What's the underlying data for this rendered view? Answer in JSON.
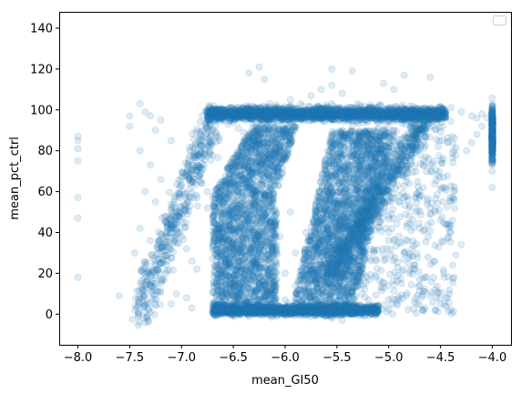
{
  "chart_data": {
    "type": "scatter",
    "title": "",
    "xlabel": "mean_GI50",
    "ylabel": "mean_pct_ctrl",
    "xlim": [
      -8.18,
      -3.82
    ],
    "ylim": [
      -15,
      148
    ],
    "xticks": [
      -8.0,
      -7.5,
      -7.0,
      -6.5,
      -6.0,
      -5.5,
      -5.0,
      -4.5,
      -4.0
    ],
    "xtick_labels": [
      "−8.0",
      "−7.5",
      "−7.0",
      "−6.5",
      "−6.0",
      "−5.5",
      "−5.0",
      "−4.5",
      "−4.0"
    ],
    "yticks": [
      0,
      20,
      40,
      60,
      80,
      100,
      120,
      140
    ],
    "ytick_labels": [
      "0",
      "20",
      "40",
      "60",
      "80",
      "100",
      "120",
      "140"
    ],
    "grid": false,
    "legend": "top-right (empty)",
    "marker_color": "#1f77b4",
    "marker_alpha": 0.15,
    "series": [
      {
        "x": [
          -8.0,
          -8.0,
          -8.0,
          -8.0,
          -8.0,
          -8.0,
          -8.0,
          -7.6,
          -7.5,
          -7.5,
          -7.4,
          -7.35,
          -7.3,
          -7.2,
          -7.25,
          -7.1,
          -7.4,
          -7.3,
          -7.2,
          -7.35,
          -7.25,
          -7.15,
          -7.4,
          -7.3,
          -7.45,
          -7.35,
          -7.15,
          -7.3,
          -7.05,
          -6.95,
          -7.1,
          -6.9,
          -7.15,
          -7.0,
          -6.95,
          -6.9,
          -6.85,
          -6.85,
          -6.8,
          -6.75,
          -6.75,
          -6.7,
          -6.65,
          -6.6,
          -6.6,
          -6.55,
          -6.5,
          -6.45,
          -6.4,
          -6.35,
          -6.3,
          -6.25,
          -6.35,
          -6.4,
          -6.5,
          -6.55,
          -6.6,
          -6.45,
          -6.4,
          -6.3,
          -6.5,
          -6.6,
          -6.7,
          -6.2,
          -6.3,
          -6.25,
          -6.15,
          -6.05,
          -6.0,
          -5.95,
          -5.9,
          -5.85,
          -5.8,
          -5.75,
          -5.7,
          -5.65,
          -5.6,
          -5.55,
          -5.5,
          -5.45,
          -5.4,
          -5.35,
          -5.3,
          -5.25,
          -5.2,
          -5.15,
          -5.1,
          -5.0,
          -4.9,
          -4.8,
          -4.7,
          -4.6,
          -4.5,
          -4.45,
          -5.35,
          -5.25,
          -5.15,
          -5.05,
          -4.95,
          -5.45,
          -5.3,
          -5.2,
          -5.1,
          -5.0,
          -4.9,
          -5.4,
          -5.3,
          -5.2,
          -5.1,
          -5.6,
          -5.5,
          -5.4,
          -5.7,
          -5.6,
          -5.5,
          -5.8,
          -5.7,
          -5.6,
          -5.9,
          -5.8,
          -5.7,
          -6.0,
          -5.9,
          -5.8,
          -6.1,
          -6.0,
          -5.9,
          -5.75,
          -5.65,
          -5.55,
          -5.85,
          -5.75,
          -5.45,
          -6.05,
          -6.15,
          -5.95,
          -6.0,
          -5.9,
          -5.8,
          -5.7,
          -5.6,
          -5.5,
          -5.4,
          -5.3,
          -5.2,
          -4.95,
          -4.85,
          -4.75,
          -4.65,
          -4.55,
          -4.45,
          -4.4,
          -4.3,
          -4.2,
          -4.15,
          -4.1,
          -4.9,
          -4.8,
          -4.7,
          -4.6,
          -4.5,
          -4.4,
          -4.3,
          -4.85,
          -4.75,
          -4.65,
          -4.55,
          -4.45,
          -4.8,
          -4.7,
          -4.6,
          -4.5,
          -4.75,
          -4.65,
          -4.55,
          -4.9,
          -4.8,
          -4.7,
          -5.0,
          -4.9,
          -4.8,
          -5.1,
          -5.0,
          -4.95,
          -4.85,
          -4.75,
          -4.0,
          -4.0,
          -4.0,
          -4.0,
          -4.0,
          -4.0,
          -4.0,
          -4.0,
          -4.0,
          -4.0,
          -4.0,
          -4.0,
          -4.0,
          -4.05,
          -4.1,
          -4.15,
          -4.2,
          -4.25,
          -6.2,
          -6.35,
          -6.25,
          -5.55,
          -5.35,
          -4.85,
          -4.6,
          -5.05,
          -4.95,
          -5.55,
          -5.45,
          -5.65,
          -5.75,
          -5.95,
          -6.85,
          -6.95,
          -7.05,
          -6.5,
          -6.6,
          -6.7,
          -6.75,
          -6.8,
          -6.65,
          -6.55,
          -6.45,
          -6.4,
          -6.35,
          -6.3,
          -6.25,
          -6.2
        ],
        "y": [
          87,
          85,
          81,
          75,
          57,
          47,
          18,
          9,
          97,
          92,
          103,
          99,
          97,
          95,
          90,
          85,
          80,
          73,
          66,
          60,
          55,
          48,
          42,
          36,
          30,
          24,
          20,
          15,
          10,
          8,
          5,
          3,
          45,
          38,
          32,
          26,
          22,
          70,
          64,
          60,
          52,
          47,
          42,
          55,
          37,
          32,
          28,
          23,
          18,
          13,
          9,
          6,
          3,
          1,
          0,
          2,
          5,
          8,
          12,
          16,
          25,
          35,
          45,
          94,
          97,
          100,
          103,
          100,
          98,
          99,
          101,
          103,
          100,
          98,
          97,
          99,
          101,
          103,
          100,
          98,
          99,
          101,
          103,
          100,
          98,
          97,
          99,
          101,
          100,
          98,
          97,
          99,
          100,
          98,
          92,
          88,
          84,
          80,
          76,
          85,
          78,
          72,
          66,
          60,
          55,
          70,
          62,
          55,
          48,
          60,
          52,
          45,
          50,
          42,
          35,
          40,
          32,
          25,
          30,
          22,
          16,
          20,
          14,
          9,
          12,
          7,
          3,
          2,
          0,
          -2,
          4,
          1,
          -3,
          38,
          45,
          50,
          0,
          2,
          4,
          1,
          -1,
          0,
          3,
          2,
          1,
          98,
          99,
          100,
          97,
          96,
          98,
          101,
          99,
          97,
          96,
          98,
          70,
          64,
          58,
          52,
          46,
          40,
          34,
          30,
          24,
          18,
          12,
          8,
          20,
          14,
          9,
          5,
          6,
          3,
          2,
          55,
          48,
          42,
          65,
          58,
          52,
          48,
          40,
          36,
          30,
          22,
          102,
          100,
          98,
          96,
          94,
          92,
          90,
          88,
          85,
          80,
          75,
          70,
          62,
          96,
          92,
          88,
          84,
          80,
          115,
          118,
          121,
          120,
          119,
          117,
          116,
          113,
          110,
          112,
          108,
          110,
          107,
          105,
          57,
          52,
          48,
          94,
          96,
          98,
          100,
          97,
          95,
          93,
          91,
          89,
          87,
          85,
          83,
          80
        ]
      }
    ]
  }
}
